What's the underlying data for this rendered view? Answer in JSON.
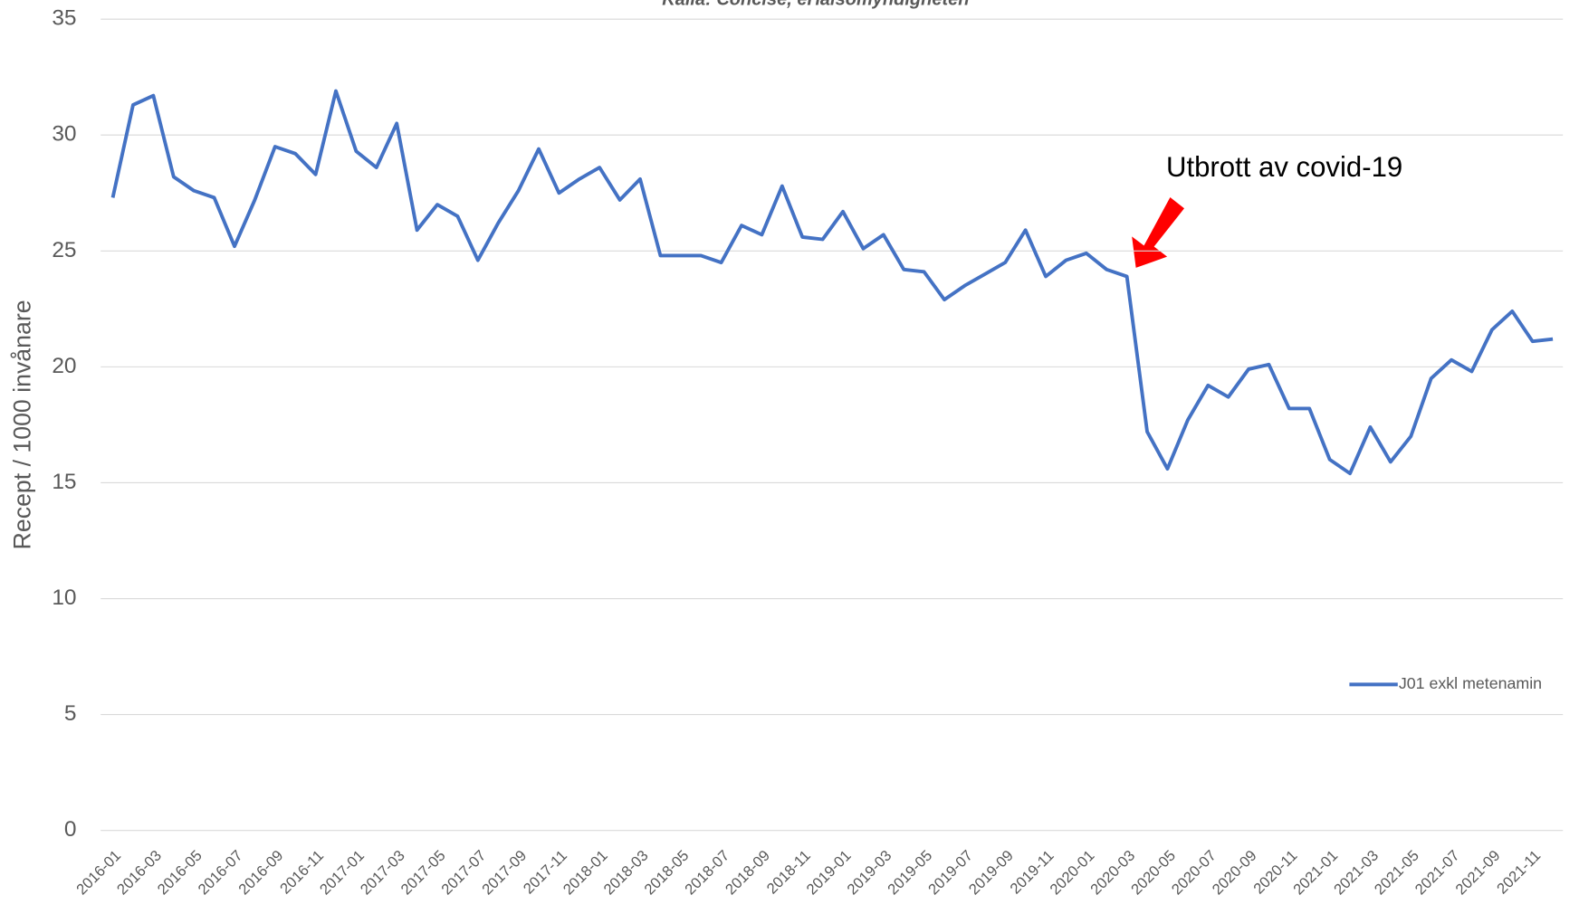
{
  "chart_data": {
    "type": "line",
    "subtitle": "Källa: Concise, eHälsomyndigheten",
    "y_label": "Recept / 1000 invånare",
    "annotation": "Utbrott av covid-19",
    "categories": [
      "2016-01",
      null,
      "2016-03",
      null,
      "2016-05",
      null,
      "2016-07",
      null,
      "2016-09",
      null,
      "2016-11",
      null,
      "2017-01",
      null,
      "2017-03",
      null,
      "2017-05",
      null,
      "2017-07",
      null,
      "2017-09",
      null,
      "2017-11",
      null,
      "2018-01",
      null,
      "2018-03",
      null,
      "2018-05",
      null,
      "2018-07",
      null,
      "2018-09",
      null,
      "2018-11",
      null,
      "2019-01",
      null,
      "2019-03",
      null,
      "2019-05",
      null,
      "2019-07",
      null,
      "2019-09",
      null,
      "2019-11",
      null,
      "2020-01",
      null,
      "2020-03",
      null,
      "2020-05",
      null,
      "2020-07",
      null,
      "2020-09",
      null,
      "2020-11",
      null,
      "2021-01",
      null,
      "2021-03",
      null,
      "2021-05",
      null,
      "2021-07",
      null,
      "2021-09",
      null,
      "2021-11",
      null
    ],
    "series": [
      {
        "name": "J01 exkl metenamin",
        "color": "#4472c4",
        "values": [
          27.3,
          31.3,
          31.7,
          28.2,
          27.6,
          27.3,
          25.2,
          27.2,
          29.5,
          29.2,
          28.3,
          31.9,
          29.3,
          28.6,
          30.5,
          25.9,
          27.0,
          26.5,
          24.6,
          26.2,
          27.6,
          29.4,
          27.5,
          28.1,
          28.6,
          27.2,
          28.1,
          24.8,
          24.8,
          24.8,
          24.5,
          26.1,
          25.7,
          27.8,
          25.6,
          25.5,
          26.7,
          25.1,
          25.7,
          24.2,
          24.1,
          22.9,
          23.5,
          24.0,
          24.5,
          25.9,
          23.9,
          24.6,
          24.9,
          24.2,
          23.9,
          17.2,
          15.6,
          17.7,
          19.2,
          18.7,
          19.9,
          20.1,
          18.2,
          18.2,
          16.0,
          15.4,
          17.4,
          15.9,
          17.0,
          19.5,
          20.3,
          19.8,
          21.6,
          22.4,
          21.1,
          21.2
        ]
      }
    ],
    "ylim": [
      0,
      35
    ],
    "yticks": [
      0,
      5,
      10,
      15,
      20,
      25,
      30,
      35
    ],
    "grid": true,
    "legend": "right"
  }
}
